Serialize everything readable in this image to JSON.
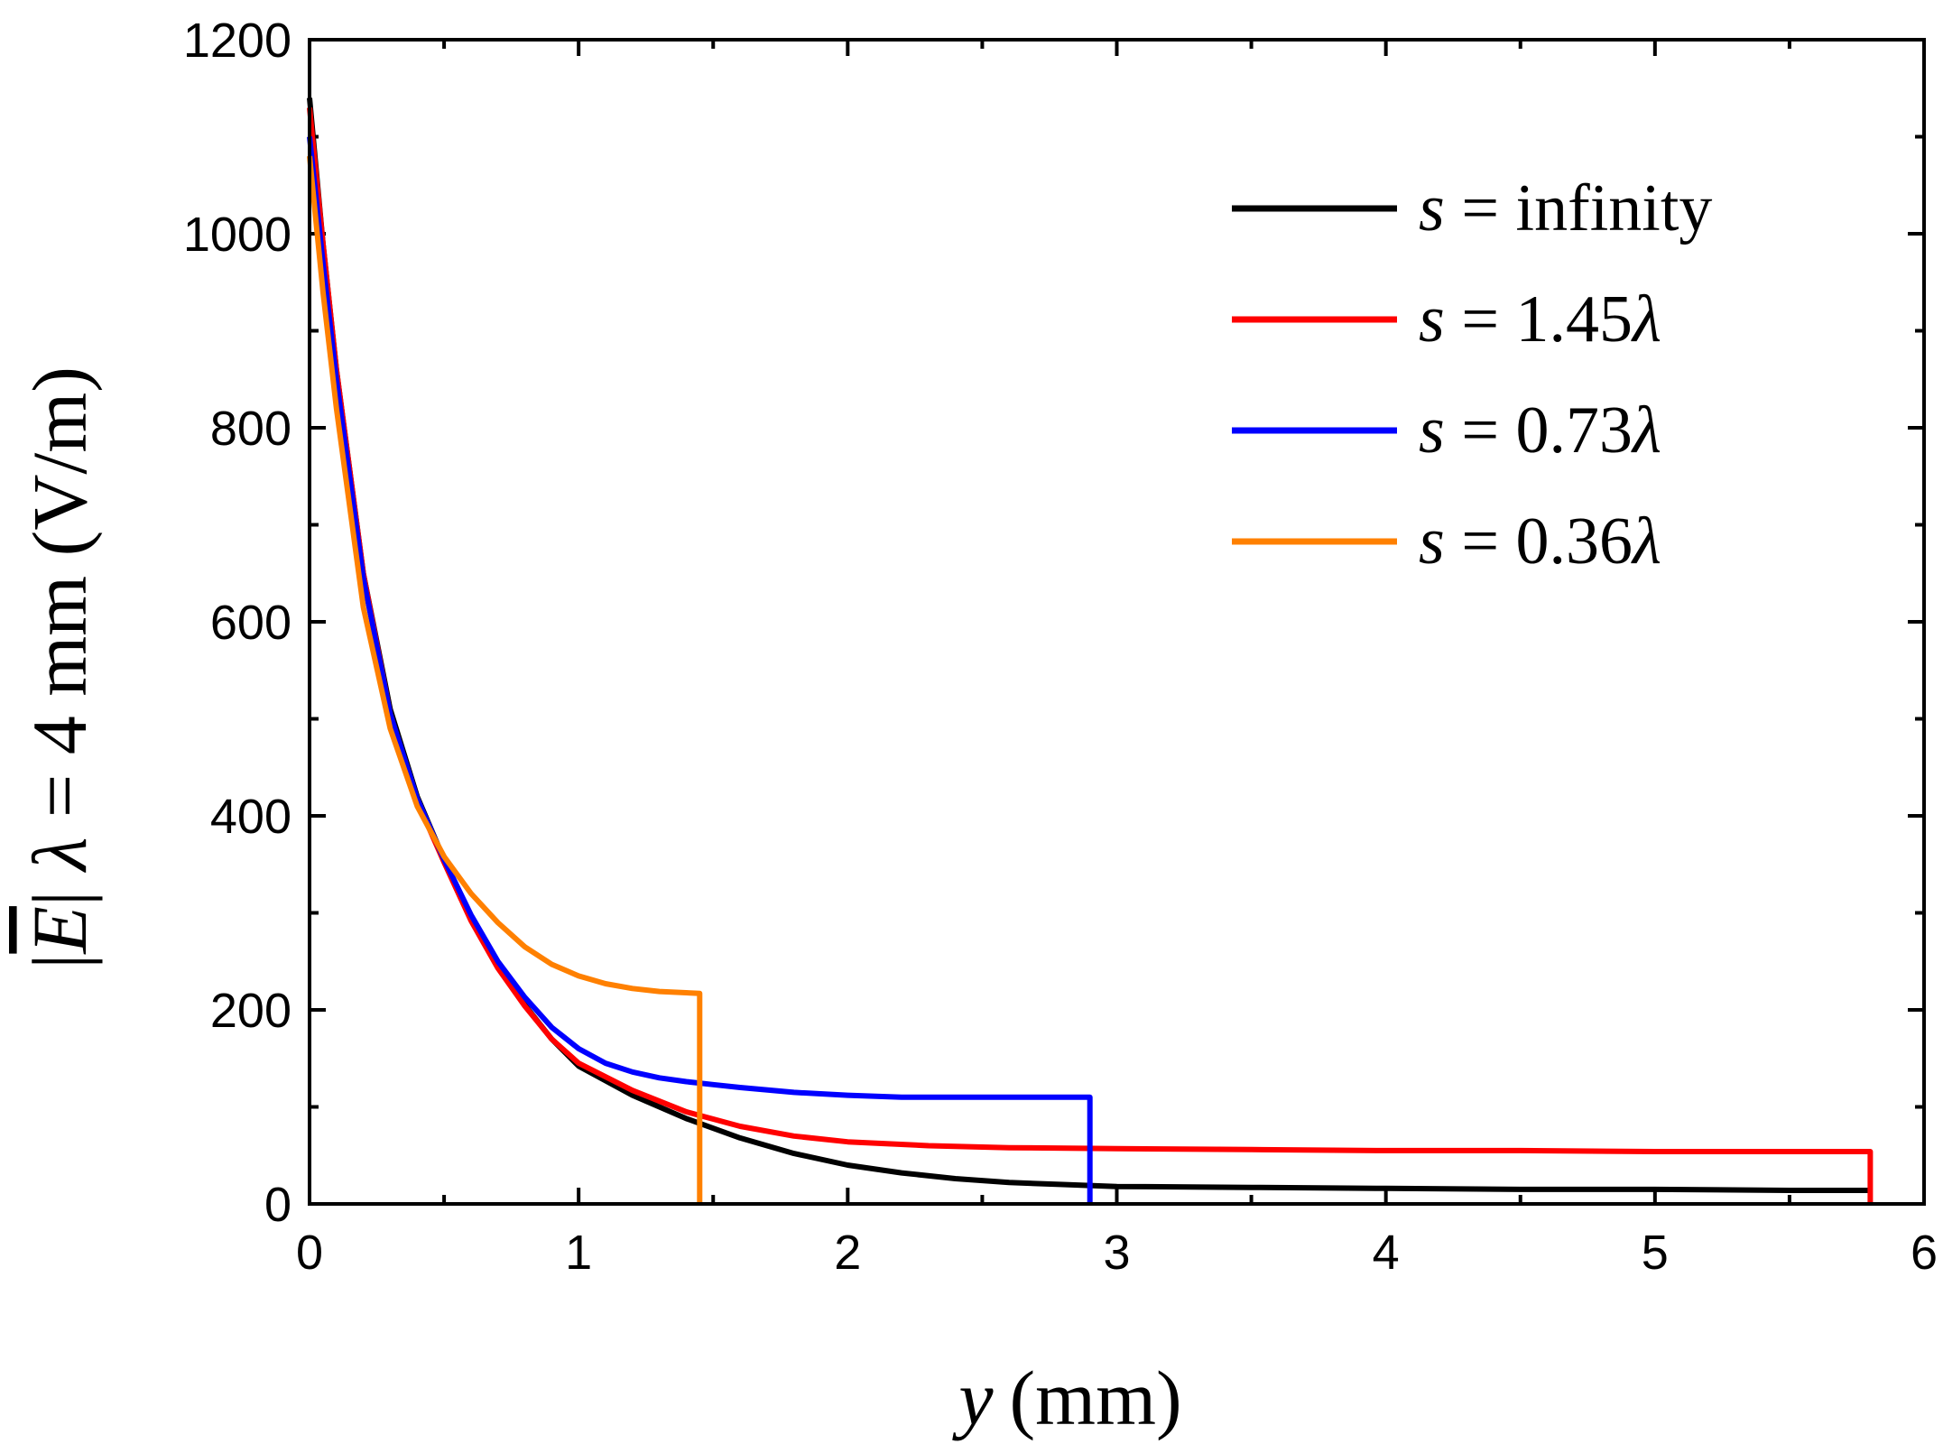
{
  "chart_data": {
    "type": "line",
    "title": "",
    "xlabel": {
      "var": "y",
      "unit": "(mm)"
    },
    "ylabel": {
      "prefix": "|",
      "symbol": "E",
      "sep": "|",
      "lambda": "λ",
      "suffix": " = 4 mm (V/m)"
    },
    "xlim": [
      0,
      6
    ],
    "ylim": [
      0,
      1200
    ],
    "xticks": [
      0,
      1,
      2,
      3,
      4,
      5,
      6
    ],
    "yticks": [
      0,
      200,
      400,
      600,
      800,
      1000,
      1200
    ],
    "xtick_labels": [
      "0",
      "1",
      "2",
      "3",
      "4",
      "5",
      "6"
    ],
    "ytick_labels": [
      "0",
      "200",
      "400",
      "600",
      "800",
      "1000",
      "1200"
    ],
    "grid": false,
    "legend_position": "top-right",
    "series": [
      {
        "name": "s = infinity",
        "label": {
          "var": "s",
          "rest": " = infinity"
        },
        "color": "#000000",
        "x": [
          0.0,
          0.05,
          0.1,
          0.2,
          0.3,
          0.4,
          0.5,
          0.6,
          0.7,
          0.8,
          0.9,
          1.0,
          1.2,
          1.4,
          1.6,
          1.8,
          2.0,
          2.2,
          2.4,
          2.6,
          2.8,
          3.0,
          3.5,
          4.0,
          4.5,
          5.0,
          5.5,
          5.8
        ],
        "y": [
          1140,
          990,
          860,
          650,
          510,
          420,
          355,
          295,
          245,
          205,
          170,
          142,
          112,
          88,
          68,
          52,
          40,
          32,
          26,
          22,
          20,
          18,
          17,
          16,
          15,
          15,
          14,
          14
        ]
      },
      {
        "name": "s = 1.45λ",
        "label": {
          "var": "s",
          "rest": " = 1.45",
          "lambda": "λ"
        },
        "color": "#ff0000",
        "x": [
          0.0,
          0.05,
          0.1,
          0.2,
          0.3,
          0.4,
          0.5,
          0.6,
          0.7,
          0.8,
          0.9,
          1.0,
          1.2,
          1.4,
          1.6,
          1.8,
          2.0,
          2.3,
          2.6,
          3.0,
          3.5,
          4.0,
          4.5,
          5.0,
          5.5,
          5.8,
          5.8
        ],
        "y": [
          1130,
          990,
          860,
          650,
          505,
          415,
          352,
          292,
          243,
          204,
          170,
          145,
          117,
          95,
          80,
          70,
          64,
          60,
          58,
          57,
          56,
          55,
          55,
          54,
          54,
          54,
          0
        ]
      },
      {
        "name": "s = 0.73λ",
        "label": {
          "var": "s",
          "rest": " = 0.73",
          "lambda": "λ"
        },
        "color": "#0000ff",
        "x": [
          0.0,
          0.05,
          0.1,
          0.2,
          0.3,
          0.4,
          0.5,
          0.6,
          0.7,
          0.8,
          0.9,
          1.0,
          1.1,
          1.2,
          1.3,
          1.4,
          1.5,
          1.6,
          1.8,
          2.0,
          2.2,
          2.4,
          2.6,
          2.8,
          2.9,
          2.9
        ],
        "y": [
          1100,
          970,
          850,
          645,
          505,
          418,
          355,
          298,
          250,
          213,
          182,
          160,
          145,
          136,
          130,
          126,
          123,
          120,
          115,
          112,
          110,
          110,
          110,
          110,
          110,
          0
        ]
      },
      {
        "name": "s = 0.36λ",
        "label": {
          "var": "s",
          "rest": " = 0.36",
          "lambda": "λ"
        },
        "color": "#ff8000",
        "x": [
          0.0,
          0.05,
          0.1,
          0.2,
          0.3,
          0.4,
          0.5,
          0.6,
          0.7,
          0.8,
          0.9,
          1.0,
          1.1,
          1.2,
          1.3,
          1.45,
          1.45
        ],
        "y": [
          1080,
          940,
          820,
          615,
          490,
          410,
          358,
          320,
          290,
          265,
          247,
          235,
          227,
          222,
          219,
          217,
          0
        ]
      }
    ]
  }
}
